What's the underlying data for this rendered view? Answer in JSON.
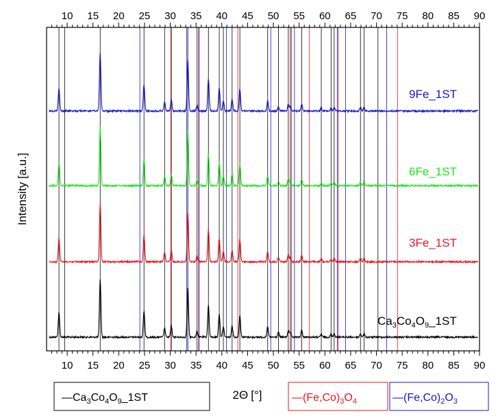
{
  "chart_data": {
    "type": "line",
    "xlabel_symbol": "2Θ",
    "xlabel_unit": "[°]",
    "ylabel": "Intensity [a.u.]",
    "xlim": [
      6,
      90
    ],
    "x_major_ticks": [
      10,
      15,
      20,
      25,
      30,
      35,
      40,
      45,
      50,
      55,
      60,
      65,
      70,
      75,
      80,
      85,
      90
    ],
    "series": [
      {
        "name": "Ca3Co4O9_1ST",
        "label": "Ca3Co4O9_1ST",
        "color": "#000000",
        "offset": 0,
        "peaks": [
          [
            8.4,
            42
          ],
          [
            16.4,
            100
          ],
          [
            24.9,
            45
          ],
          [
            28.9,
            16
          ],
          [
            30.2,
            20
          ],
          [
            33.4,
            85
          ],
          [
            35.2,
            10
          ],
          [
            37.4,
            55
          ],
          [
            39.5,
            40
          ],
          [
            40.3,
            18
          ],
          [
            42.0,
            20
          ],
          [
            43.5,
            38
          ],
          [
            48.9,
            18
          ],
          [
            51.0,
            8
          ],
          [
            52.9,
            12
          ],
          [
            53.3,
            8
          ],
          [
            55.5,
            12
          ],
          [
            59.3,
            5
          ],
          [
            61.2,
            5
          ],
          [
            61.8,
            6
          ],
          [
            66.9,
            6
          ],
          [
            67.6,
            6
          ]
        ]
      },
      {
        "name": "3Fe_1ST",
        "label": "3Fe_1ST",
        "color": "#e8141e",
        "offset": 1,
        "peaks": [
          [
            8.4,
            40
          ],
          [
            16.4,
            100
          ],
          [
            24.9,
            45
          ],
          [
            28.9,
            16
          ],
          [
            30.2,
            20
          ],
          [
            33.4,
            85
          ],
          [
            35.2,
            10
          ],
          [
            37.4,
            55
          ],
          [
            39.5,
            40
          ],
          [
            40.3,
            18
          ],
          [
            42.0,
            20
          ],
          [
            43.5,
            38
          ],
          [
            48.9,
            18
          ],
          [
            51.0,
            8
          ],
          [
            52.9,
            12
          ],
          [
            53.3,
            8
          ],
          [
            55.5,
            12
          ],
          [
            59.3,
            5
          ],
          [
            61.2,
            5
          ],
          [
            61.8,
            6
          ],
          [
            66.9,
            6
          ],
          [
            67.6,
            6
          ]
        ]
      },
      {
        "name": "6Fe_1ST",
        "label": "6Fe_1ST",
        "color": "#19e619",
        "offset": 2,
        "peaks": [
          [
            8.4,
            40
          ],
          [
            16.4,
            100
          ],
          [
            24.9,
            45
          ],
          [
            28.9,
            16
          ],
          [
            30.2,
            20
          ],
          [
            33.4,
            95
          ],
          [
            35.2,
            10
          ],
          [
            37.4,
            55
          ],
          [
            39.5,
            40
          ],
          [
            40.3,
            18
          ],
          [
            42.0,
            20
          ],
          [
            43.5,
            38
          ],
          [
            48.9,
            18
          ],
          [
            51.0,
            8
          ],
          [
            52.9,
            12
          ],
          [
            53.3,
            8
          ],
          [
            55.5,
            12
          ],
          [
            59.3,
            5
          ],
          [
            61.2,
            5
          ],
          [
            61.8,
            6
          ],
          [
            66.9,
            6
          ],
          [
            67.6,
            6
          ]
        ]
      },
      {
        "name": "9Fe_1ST",
        "label": "9Fe_1ST",
        "color": "#1414cc",
        "offset": 3,
        "peaks": [
          [
            8.4,
            40
          ],
          [
            16.4,
            100
          ],
          [
            24.9,
            45
          ],
          [
            28.9,
            16
          ],
          [
            30.2,
            20
          ],
          [
            33.4,
            88
          ],
          [
            35.2,
            10
          ],
          [
            37.4,
            55
          ],
          [
            39.5,
            40
          ],
          [
            40.3,
            18
          ],
          [
            42.0,
            20
          ],
          [
            43.5,
            38
          ],
          [
            48.9,
            18
          ],
          [
            51.0,
            8
          ],
          [
            52.9,
            12
          ],
          [
            53.3,
            8
          ],
          [
            55.5,
            12
          ],
          [
            59.3,
            5
          ],
          [
            61.2,
            5
          ],
          [
            61.8,
            6
          ],
          [
            66.9,
            6
          ],
          [
            67.6,
            6
          ]
        ]
      }
    ],
    "reference_lines": [
      {
        "name": "Ca3Co4O9_1ST",
        "color": "#000000",
        "positions": [
          8.4,
          9.5,
          16.4,
          24.9,
          28.9,
          30.2,
          33.4,
          35.2,
          37.4,
          39.5,
          40.3,
          42.0,
          43.5,
          48.9,
          51.0,
          52.9,
          53.3,
          55.5,
          59.3,
          61.2,
          61.8,
          66.9,
          67.6,
          70.3
        ]
      },
      {
        "name": "(Fe,Co)3O4",
        "color": "#e8141e",
        "positions": [
          30.1,
          35.5,
          43.1,
          53.5,
          57.0,
          62.6,
          74.1
        ]
      },
      {
        "name": "(Fe,Co)2O3",
        "color": "#1414cc",
        "positions": [
          24.1,
          33.2,
          35.6,
          40.9,
          49.5,
          54.1,
          62.4,
          64.0,
          72.0
        ]
      }
    ]
  },
  "legend": {
    "black": {
      "dash": "—",
      "main": "Ca",
      "s1": "3",
      "m2": "Co",
      "s2": "4",
      "m3": "O",
      "s3": "9",
      "tail": "_1ST"
    },
    "red": {
      "dash": "—",
      "main": "(Fe,Co)",
      "s1": "3",
      "m2": "O",
      "s2": "4"
    },
    "blue": {
      "dash": "—",
      "main": "(Fe,Co)",
      "s1": "2",
      "m2": "O",
      "s2": "3"
    }
  },
  "series_labels": {
    "s9": "9Fe_1ST",
    "s6": "6Fe_1ST",
    "s3": "3Fe_1ST",
    "s0": {
      "main": "Ca",
      "s1": "3",
      "m2": "Co",
      "s2": "4",
      "m3": "O",
      "s3": "9",
      "tail": "_1ST"
    }
  }
}
